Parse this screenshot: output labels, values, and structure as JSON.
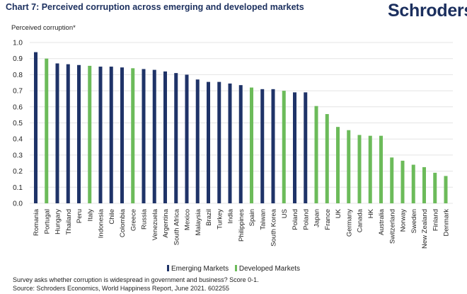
{
  "header": {
    "title": "Chart 7: Perceived corruption across emerging and developed markets",
    "logo": "Schroders"
  },
  "colors": {
    "emerging": "#1f3368",
    "developed": "#6cbb5a",
    "grid": "#e4e4e4"
  },
  "footer": {
    "note": "Survey asks whether corruption is widespread in government and business? Score 0-1.",
    "source": "Source: Schroders Economics, World Happiness Report, June 2021. 602255"
  },
  "chart_data": {
    "type": "bar",
    "title": "Chart 7: Perceived corruption across emerging and developed markets",
    "xlabel": "",
    "ylabel": "Perceived corruption*",
    "ylim": [
      0,
      1.0
    ],
    "yticks": [
      "0.0",
      "0.1",
      "0.2",
      "0.3",
      "0.4",
      "0.5",
      "0.6",
      "0.7",
      "0.8",
      "0.9",
      "1.0"
    ],
    "grid": true,
    "legend_position": "bottom-center",
    "legend": [
      {
        "name": "Emerging Markets",
        "key": "emerging"
      },
      {
        "name": "Developed Markets",
        "key": "developed"
      }
    ],
    "categories": [
      "Romania",
      "Portugal",
      "Hungary",
      "Thailand",
      "Peru",
      "Italy",
      "Indonesia",
      "Chile",
      "Colombia",
      "Greece",
      "Russia",
      "Venezuela",
      "Argentina",
      "South Africa",
      "Mexico",
      "Malaysia",
      "Brazil",
      "Turkey",
      "India",
      "Philippines",
      "Spain",
      "Taiwan",
      "South Korea",
      "US",
      "Poland",
      "Poland",
      "Japan",
      "France",
      "UK",
      "Germany",
      "Canada",
      "HK",
      "Australia",
      "Switzerland",
      "Norway",
      "Sweden",
      "New Zealand",
      "Finland",
      "Denmark"
    ],
    "groups": [
      "emerging",
      "developed",
      "emerging",
      "emerging",
      "emerging",
      "developed",
      "emerging",
      "emerging",
      "emerging",
      "developed",
      "emerging",
      "emerging",
      "emerging",
      "emerging",
      "emerging",
      "emerging",
      "emerging",
      "emerging",
      "emerging",
      "emerging",
      "developed",
      "emerging",
      "emerging",
      "developed",
      "emerging",
      "emerging",
      "developed",
      "developed",
      "developed",
      "developed",
      "developed",
      "developed",
      "developed",
      "developed",
      "developed",
      "developed",
      "developed",
      "developed",
      "developed"
    ],
    "values": [
      0.94,
      0.9,
      0.87,
      0.865,
      0.86,
      0.855,
      0.85,
      0.85,
      0.845,
      0.84,
      0.835,
      0.83,
      0.82,
      0.81,
      0.8,
      0.77,
      0.755,
      0.755,
      0.745,
      0.735,
      0.72,
      0.71,
      0.71,
      0.7,
      0.69,
      0.69,
      0.605,
      0.555,
      0.475,
      0.455,
      0.425,
      0.42,
      0.42,
      0.285,
      0.265,
      0.24,
      0.225,
      0.19,
      0.17
    ]
  }
}
